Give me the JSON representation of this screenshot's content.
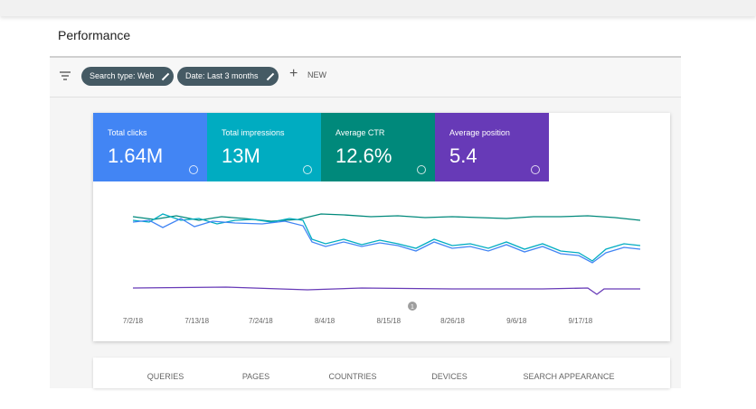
{
  "header": {
    "title": "Performance"
  },
  "toolbar": {
    "filters": [
      "Search type: Web",
      "Date: Last 3 months"
    ],
    "new_button": "NEW"
  },
  "metrics": [
    {
      "label": "Total clicks",
      "value": "1.64M"
    },
    {
      "label": "Total impressions",
      "value": "13M"
    },
    {
      "label": "Average CTR",
      "value": "12.6%"
    },
    {
      "label": "Average position",
      "value": "5.4"
    }
  ],
  "chart": {
    "x_labels": [
      "7/2/18",
      "7/13/18",
      "7/24/18",
      "8/4/18",
      "8/15/18",
      "8/26/18",
      "9/6/18",
      "9/17/18"
    ],
    "annotation": "1"
  },
  "tabs": [
    "QUERIES",
    "PAGES",
    "COUNTRIES",
    "DEVICES",
    "SEARCH APPEARANCE"
  ]
}
